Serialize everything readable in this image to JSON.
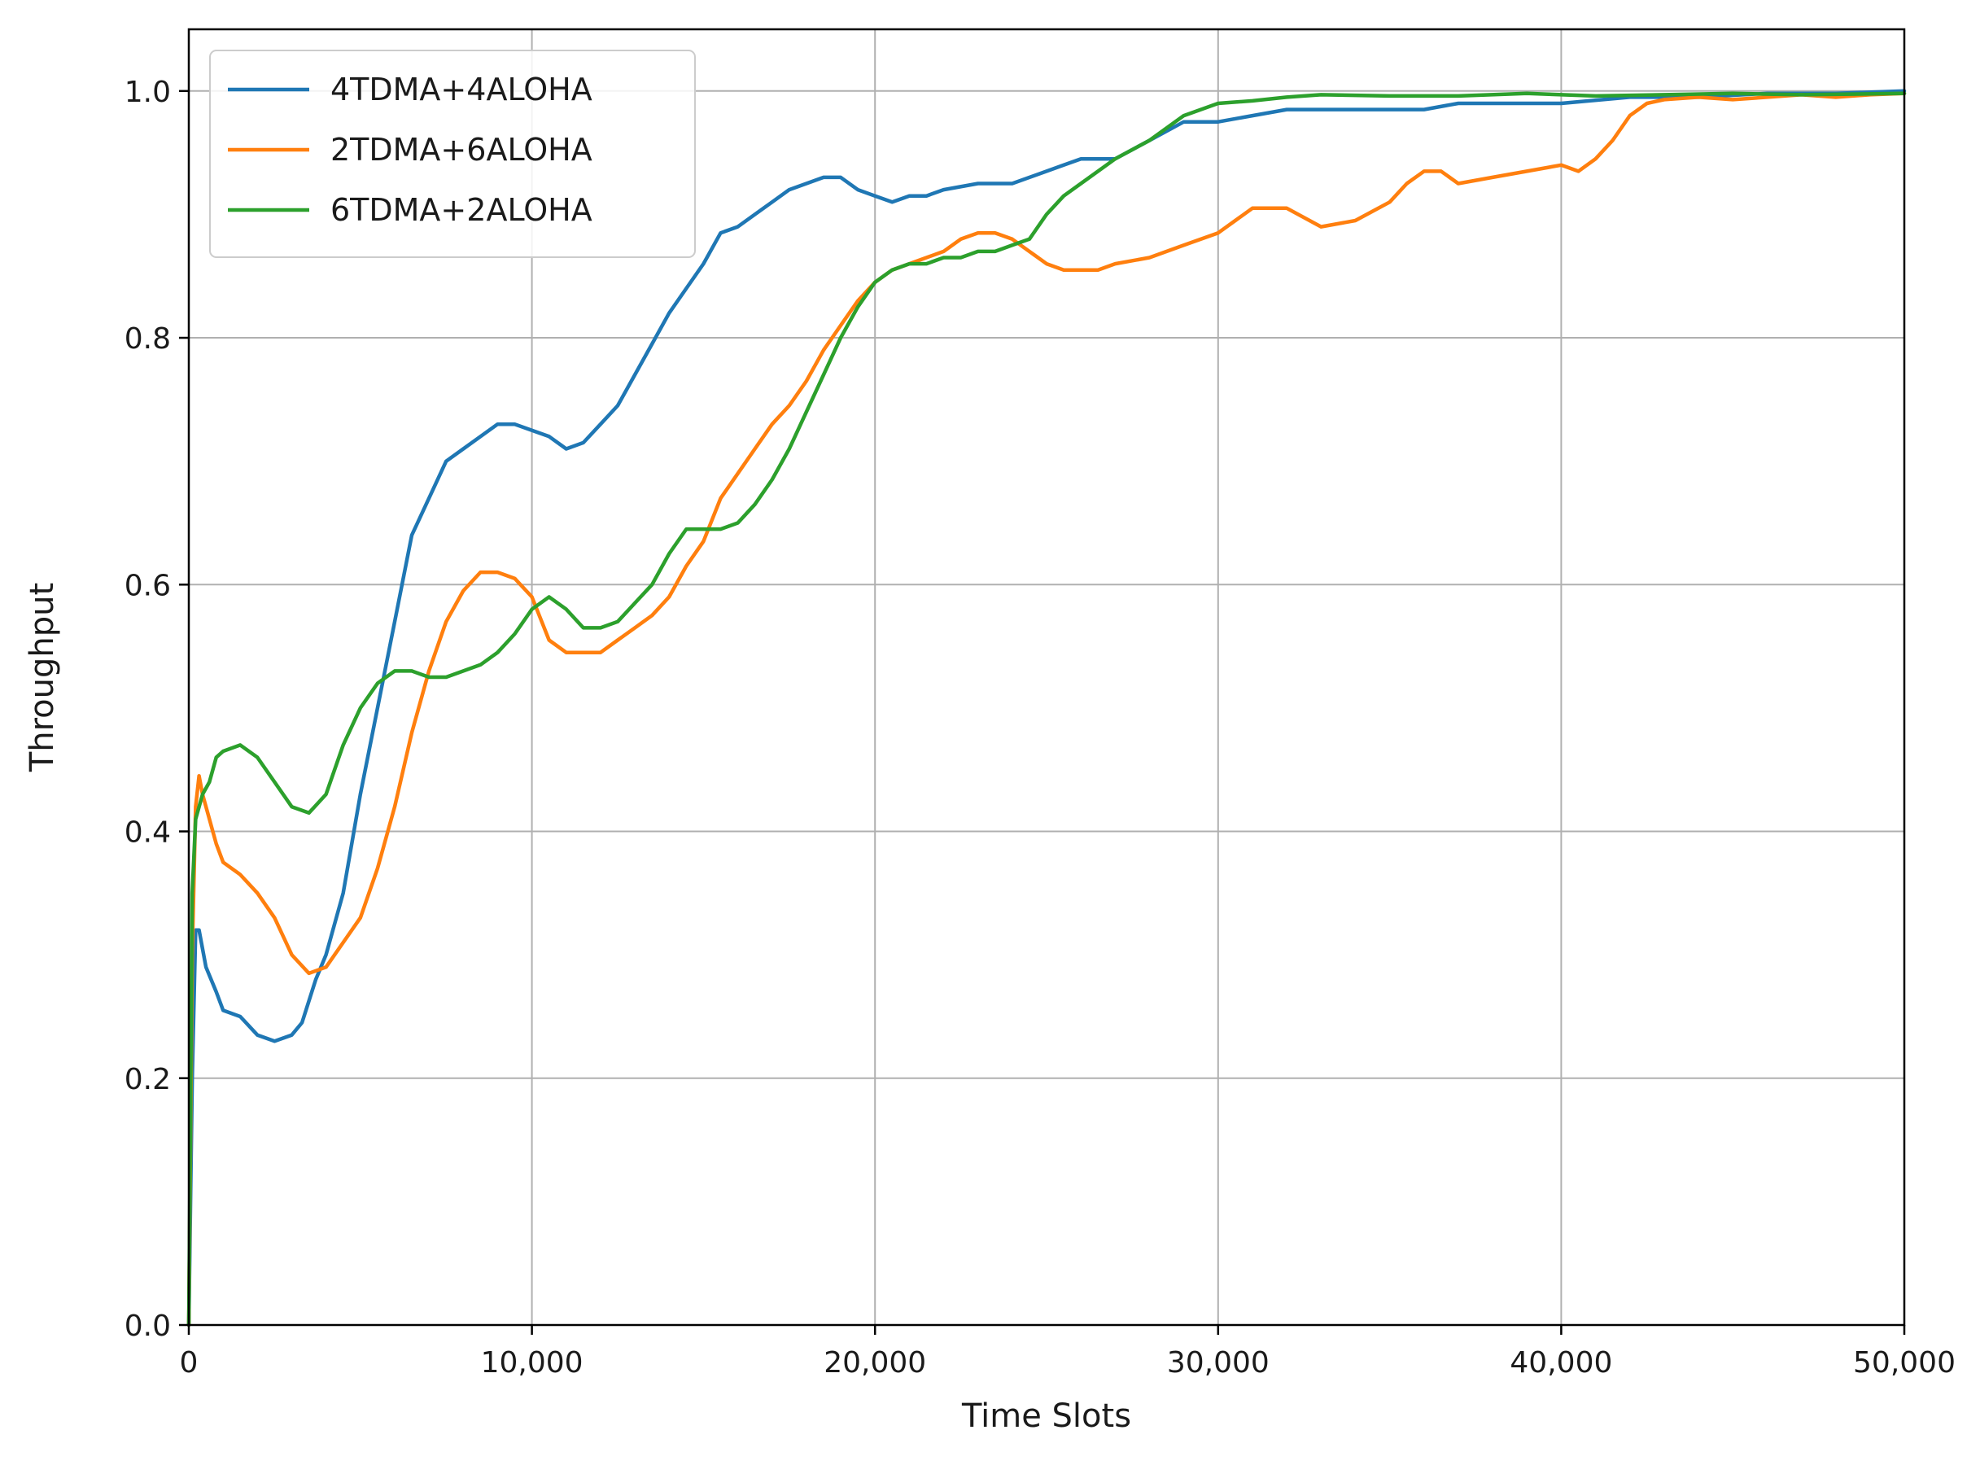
{
  "chart_data": {
    "type": "line",
    "xlabel": "Time Slots",
    "ylabel": "Throughput",
    "xlim": [
      0,
      50000
    ],
    "ylim": [
      0.0,
      1.05
    ],
    "x_ticks": [
      0,
      10000,
      20000,
      30000,
      40000,
      50000
    ],
    "x_tick_labels": [
      "0",
      "10,000",
      "20,000",
      "30,000",
      "40,000",
      "50,000"
    ],
    "y_ticks": [
      0.0,
      0.2,
      0.4,
      0.6,
      0.8,
      1.0
    ],
    "y_tick_labels": [
      "0.0",
      "0.2",
      "0.4",
      "0.6",
      "0.8",
      "1.0"
    ],
    "grid": true,
    "legend_position": "top-left",
    "series": [
      {
        "name": "4TDMA+4ALOHA",
        "color": "#1f77b4",
        "points": [
          [
            0,
            0.0
          ],
          [
            100,
            0.2
          ],
          [
            200,
            0.32
          ],
          [
            300,
            0.32
          ],
          [
            500,
            0.29
          ],
          [
            800,
            0.27
          ],
          [
            1000,
            0.255
          ],
          [
            1500,
            0.25
          ],
          [
            2000,
            0.235
          ],
          [
            2500,
            0.23
          ],
          [
            3000,
            0.235
          ],
          [
            3300,
            0.245
          ],
          [
            3700,
            0.28
          ],
          [
            4000,
            0.3
          ],
          [
            4500,
            0.35
          ],
          [
            5000,
            0.43
          ],
          [
            5500,
            0.5
          ],
          [
            6000,
            0.57
          ],
          [
            6500,
            0.64
          ],
          [
            7000,
            0.67
          ],
          [
            7500,
            0.7
          ],
          [
            8000,
            0.71
          ],
          [
            8500,
            0.72
          ],
          [
            9000,
            0.73
          ],
          [
            9500,
            0.73
          ],
          [
            10000,
            0.725
          ],
          [
            10500,
            0.72
          ],
          [
            11000,
            0.71
          ],
          [
            11500,
            0.715
          ],
          [
            12000,
            0.73
          ],
          [
            12500,
            0.745
          ],
          [
            13000,
            0.77
          ],
          [
            13500,
            0.795
          ],
          [
            14000,
            0.82
          ],
          [
            14500,
            0.84
          ],
          [
            15000,
            0.86
          ],
          [
            15500,
            0.885
          ],
          [
            16000,
            0.89
          ],
          [
            16500,
            0.9
          ],
          [
            17000,
            0.91
          ],
          [
            17500,
            0.92
          ],
          [
            18000,
            0.925
          ],
          [
            18500,
            0.93
          ],
          [
            19000,
            0.93
          ],
          [
            19500,
            0.92
          ],
          [
            20000,
            0.915
          ],
          [
            20500,
            0.91
          ],
          [
            21000,
            0.915
          ],
          [
            21500,
            0.915
          ],
          [
            22000,
            0.92
          ],
          [
            23000,
            0.925
          ],
          [
            24000,
            0.925
          ],
          [
            25000,
            0.935
          ],
          [
            25500,
            0.94
          ],
          [
            26000,
            0.945
          ],
          [
            27000,
            0.945
          ],
          [
            28000,
            0.96
          ],
          [
            29000,
            0.975
          ],
          [
            30000,
            0.975
          ],
          [
            31000,
            0.98
          ],
          [
            32000,
            0.985
          ],
          [
            33000,
            0.985
          ],
          [
            35000,
            0.985
          ],
          [
            36000,
            0.985
          ],
          [
            37000,
            0.99
          ],
          [
            38000,
            0.99
          ],
          [
            40000,
            0.99
          ],
          [
            42000,
            0.995
          ],
          [
            44000,
            0.995
          ],
          [
            46000,
            0.998
          ],
          [
            48000,
            0.998
          ],
          [
            50000,
            1.0
          ]
        ]
      },
      {
        "name": "2TDMA+6ALOHA",
        "color": "#ff7f0e",
        "points": [
          [
            0,
            0.0
          ],
          [
            100,
            0.3
          ],
          [
            200,
            0.42
          ],
          [
            300,
            0.445
          ],
          [
            400,
            0.43
          ],
          [
            600,
            0.41
          ],
          [
            800,
            0.39
          ],
          [
            1000,
            0.375
          ],
          [
            1500,
            0.365
          ],
          [
            2000,
            0.35
          ],
          [
            2500,
            0.33
          ],
          [
            3000,
            0.3
          ],
          [
            3500,
            0.285
          ],
          [
            4000,
            0.29
          ],
          [
            4500,
            0.31
          ],
          [
            5000,
            0.33
          ],
          [
            5500,
            0.37
          ],
          [
            6000,
            0.42
          ],
          [
            6500,
            0.48
          ],
          [
            7000,
            0.53
          ],
          [
            7500,
            0.57
          ],
          [
            8000,
            0.595
          ],
          [
            8500,
            0.61
          ],
          [
            9000,
            0.61
          ],
          [
            9500,
            0.605
          ],
          [
            10000,
            0.59
          ],
          [
            10500,
            0.555
          ],
          [
            11000,
            0.545
          ],
          [
            11500,
            0.545
          ],
          [
            12000,
            0.545
          ],
          [
            12500,
            0.555
          ],
          [
            13000,
            0.565
          ],
          [
            13500,
            0.575
          ],
          [
            14000,
            0.59
          ],
          [
            14500,
            0.615
          ],
          [
            15000,
            0.635
          ],
          [
            15500,
            0.67
          ],
          [
            16000,
            0.69
          ],
          [
            16500,
            0.71
          ],
          [
            17000,
            0.73
          ],
          [
            17500,
            0.745
          ],
          [
            18000,
            0.765
          ],
          [
            18500,
            0.79
          ],
          [
            19000,
            0.81
          ],
          [
            19500,
            0.83
          ],
          [
            20000,
            0.845
          ],
          [
            20500,
            0.855
          ],
          [
            21000,
            0.86
          ],
          [
            21500,
            0.865
          ],
          [
            22000,
            0.87
          ],
          [
            22500,
            0.88
          ],
          [
            23000,
            0.885
          ],
          [
            23500,
            0.885
          ],
          [
            24000,
            0.88
          ],
          [
            24500,
            0.87
          ],
          [
            25000,
            0.86
          ],
          [
            25500,
            0.855
          ],
          [
            26000,
            0.855
          ],
          [
            26500,
            0.855
          ],
          [
            27000,
            0.86
          ],
          [
            28000,
            0.865
          ],
          [
            29000,
            0.875
          ],
          [
            30000,
            0.885
          ],
          [
            30500,
            0.895
          ],
          [
            31000,
            0.905
          ],
          [
            32000,
            0.905
          ],
          [
            33000,
            0.89
          ],
          [
            34000,
            0.895
          ],
          [
            35000,
            0.91
          ],
          [
            35500,
            0.925
          ],
          [
            36000,
            0.935
          ],
          [
            36500,
            0.935
          ],
          [
            37000,
            0.925
          ],
          [
            38000,
            0.93
          ],
          [
            39000,
            0.935
          ],
          [
            40000,
            0.94
          ],
          [
            40500,
            0.935
          ],
          [
            41000,
            0.945
          ],
          [
            41500,
            0.96
          ],
          [
            42000,
            0.98
          ],
          [
            42500,
            0.99
          ],
          [
            43000,
            0.993
          ],
          [
            44000,
            0.995
          ],
          [
            45000,
            0.993
          ],
          [
            46000,
            0.995
          ],
          [
            47000,
            0.997
          ],
          [
            48000,
            0.995
          ],
          [
            49000,
            0.997
          ],
          [
            50000,
            0.998
          ]
        ]
      },
      {
        "name": "6TDMA+2ALOHA",
        "color": "#2ca02c",
        "points": [
          [
            0,
            0.0
          ],
          [
            100,
            0.35
          ],
          [
            200,
            0.41
          ],
          [
            400,
            0.43
          ],
          [
            600,
            0.44
          ],
          [
            800,
            0.46
          ],
          [
            1000,
            0.465
          ],
          [
            1500,
            0.47
          ],
          [
            2000,
            0.46
          ],
          [
            2500,
            0.44
          ],
          [
            3000,
            0.42
          ],
          [
            3500,
            0.415
          ],
          [
            4000,
            0.43
          ],
          [
            4500,
            0.47
          ],
          [
            5000,
            0.5
          ],
          [
            5500,
            0.52
          ],
          [
            6000,
            0.53
          ],
          [
            6500,
            0.53
          ],
          [
            7000,
            0.525
          ],
          [
            7500,
            0.525
          ],
          [
            8000,
            0.53
          ],
          [
            8500,
            0.535
          ],
          [
            9000,
            0.545
          ],
          [
            9500,
            0.56
          ],
          [
            10000,
            0.58
          ],
          [
            10500,
            0.59
          ],
          [
            11000,
            0.58
          ],
          [
            11500,
            0.565
          ],
          [
            12000,
            0.565
          ],
          [
            12500,
            0.57
          ],
          [
            13000,
            0.585
          ],
          [
            13500,
            0.6
          ],
          [
            14000,
            0.625
          ],
          [
            14500,
            0.645
          ],
          [
            15000,
            0.645
          ],
          [
            15500,
            0.645
          ],
          [
            16000,
            0.65
          ],
          [
            16500,
            0.665
          ],
          [
            17000,
            0.685
          ],
          [
            17500,
            0.71
          ],
          [
            18000,
            0.74
          ],
          [
            18500,
            0.77
          ],
          [
            19000,
            0.8
          ],
          [
            19500,
            0.825
          ],
          [
            20000,
            0.845
          ],
          [
            20500,
            0.855
          ],
          [
            21000,
            0.86
          ],
          [
            21500,
            0.86
          ],
          [
            22000,
            0.865
          ],
          [
            22500,
            0.865
          ],
          [
            23000,
            0.87
          ],
          [
            23500,
            0.87
          ],
          [
            24000,
            0.875
          ],
          [
            24500,
            0.88
          ],
          [
            25000,
            0.9
          ],
          [
            25500,
            0.915
          ],
          [
            26000,
            0.925
          ],
          [
            27000,
            0.945
          ],
          [
            28000,
            0.96
          ],
          [
            29000,
            0.98
          ],
          [
            30000,
            0.99
          ],
          [
            31000,
            0.992
          ],
          [
            32000,
            0.995
          ],
          [
            33000,
            0.997
          ],
          [
            35000,
            0.996
          ],
          [
            37000,
            0.996
          ],
          [
            39000,
            0.998
          ],
          [
            41000,
            0.996
          ],
          [
            43000,
            0.997
          ],
          [
            45000,
            0.998
          ],
          [
            47000,
            0.997
          ],
          [
            50000,
            0.998
          ]
        ]
      }
    ]
  }
}
